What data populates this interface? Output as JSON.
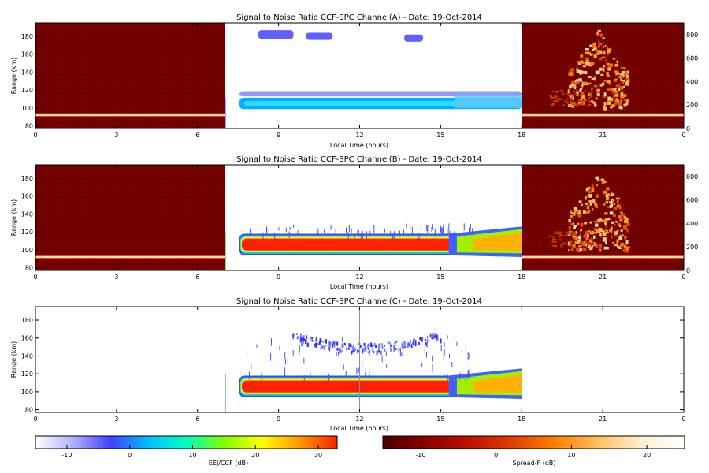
{
  "chart_data": [
    {
      "type": "heatmap",
      "title": "Signal to Noise Ratio CCF-SPC Channel(A) - Date: 19-Oct-2014",
      "xlabel": "Local Time (hours)",
      "ylabel": "Range (km)",
      "x_ticks": [
        "0",
        "3",
        "6",
        "9",
        "12",
        "15",
        "18",
        "21",
        "0"
      ],
      "y_ticks": [
        "80",
        "100",
        "120",
        "140",
        "160",
        "180"
      ],
      "y2_ticks": [
        "0",
        "200",
        "400",
        "600",
        "800"
      ],
      "xlim": [
        0,
        24
      ],
      "ylim": [
        77,
        195
      ],
      "y2lim": [
        0,
        900
      ],
      "spreadf_segments": [
        [
          0,
          7
        ],
        [
          18,
          24
        ]
      ],
      "eej_window": [
        7,
        18
      ],
      "eej_layer": {
        "bottom": 97,
        "top": 115
      },
      "spreadf_layer_km": 92
    },
    {
      "type": "heatmap",
      "title": "Signal to Noise Ratio CCF-SPC Channel(B) - Date: 19-Oct-2014",
      "xlabel": "Local Time (hours)",
      "ylabel": "Range (km)",
      "x_ticks": [
        "0",
        "3",
        "6",
        "9",
        "12",
        "15",
        "18",
        "21",
        "0"
      ],
      "y_ticks": [
        "80",
        "100",
        "120",
        "140",
        "160",
        "180"
      ],
      "y2_ticks": [
        "0",
        "200",
        "400",
        "600",
        "800"
      ],
      "xlim": [
        0,
        24
      ],
      "ylim": [
        77,
        195
      ],
      "y2lim": [
        0,
        900
      ],
      "spreadf_segments": [
        [
          0,
          7
        ],
        [
          18,
          24
        ]
      ],
      "eej_window": [
        7,
        18
      ],
      "eej_layer": {
        "bottom": 94,
        "top": 118
      },
      "spreadf_layer_km": 92
    },
    {
      "type": "heatmap",
      "title": "Signal to Noise Ratio CCF-SPC Channel(C) - Date: 19-Oct-2014",
      "xlabel": "Local Time (hours)",
      "ylabel": "Range (km)",
      "x_ticks": [
        "0",
        "3",
        "6",
        "9",
        "12",
        "15",
        "18",
        "21",
        "0"
      ],
      "y_ticks": [
        "80",
        "100",
        "120",
        "140",
        "160",
        "180"
      ],
      "xlim": [
        0,
        24
      ],
      "ylim": [
        77,
        195
      ],
      "eej_window": [
        7,
        18
      ],
      "eej_layer": {
        "bottom": 94,
        "top": 118
      }
    }
  ],
  "colorbars": [
    {
      "label": "EEJ/CCF (dB)",
      "ticks": [
        "-10",
        "0",
        "10",
        "20",
        "30"
      ],
      "range": [
        -15,
        33
      ],
      "colors": [
        "#ffffff",
        "#b0b0ff",
        "#4040ff",
        "#00c0ff",
        "#00ffc0",
        "#80ff00",
        "#ffff00",
        "#ff9900",
        "#ff2000"
      ]
    },
    {
      "label": "Spread-F (dB)",
      "ticks": [
        "-10",
        "0",
        "10",
        "20"
      ],
      "range": [
        -15,
        25
      ],
      "colors": [
        "#4a0000",
        "#8b0000",
        "#c01000",
        "#e04000",
        "#ff8000",
        "#ffc060",
        "#fff0d0",
        "#ffffff"
      ]
    }
  ]
}
